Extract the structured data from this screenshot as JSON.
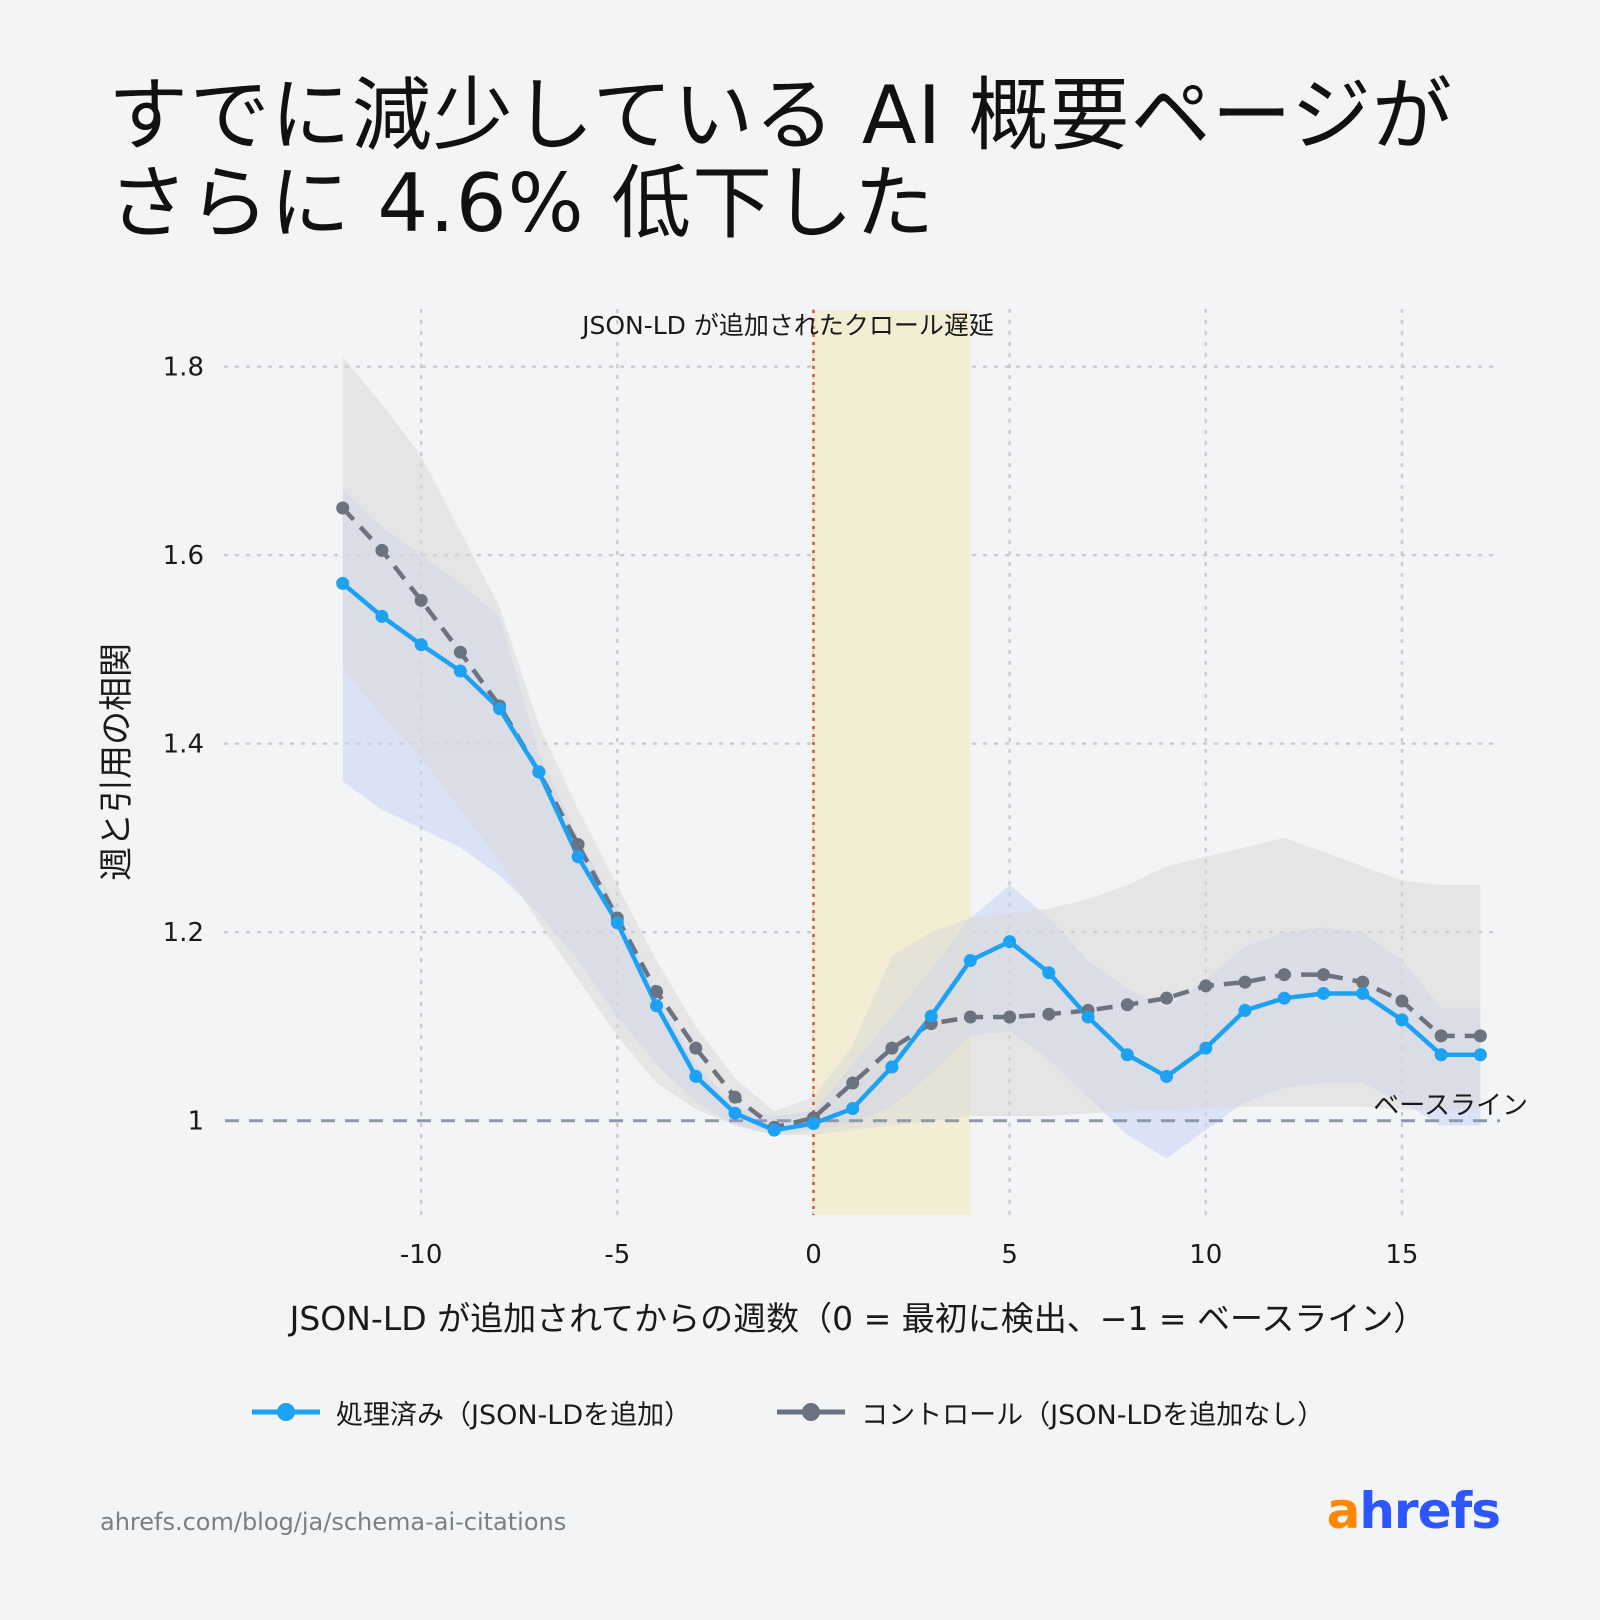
{
  "header": {
    "title_line1": "すでに減少している AI 概要ページが",
    "title_line2": "さらに 4.6% 低下した"
  },
  "chart_data": {
    "type": "line",
    "xlabel": "JSON-LD が追加されてからの週数（0 = 最初に検出、−1 = ベースライン）",
    "ylabel": "週と引用の相関",
    "xlim": [
      -15,
      17.5
    ],
    "ylim": [
      0.9,
      1.86
    ],
    "x_ticks": [
      -10,
      -5,
      0,
      5,
      10,
      15
    ],
    "x_tick_labels": [
      "-10",
      "-5",
      "0",
      "5",
      "10",
      "15"
    ],
    "y_ticks": [
      1.0,
      1.2,
      1.4,
      1.6,
      1.8
    ],
    "y_tick_labels": [
      "1",
      "1.2",
      "1.4",
      "1.6",
      "1.8"
    ],
    "grid": true,
    "legend_position": "bottom",
    "annotations": {
      "crawl_delay_label": "JSON-LD が追加されたクロール遅延",
      "crawl_delay_range": [
        0,
        4
      ],
      "event_line_x": 0,
      "baseline_label": "ベースライン",
      "baseline_y": 1.0
    },
    "series": [
      {
        "name": "処理済み（JSON-LDを追加）",
        "style": "solid",
        "color": "#1da1f2",
        "x": [
          -12,
          -11,
          -10,
          -9,
          -8,
          -7,
          -6,
          -5,
          -4,
          -3,
          -2,
          -1,
          0,
          1,
          2,
          3,
          4,
          5,
          6,
          7,
          8,
          9,
          10,
          11,
          12,
          13,
          14,
          15,
          16,
          17
        ],
        "values": [
          1.57,
          1.535,
          1.505,
          1.477,
          1.437,
          1.37,
          1.28,
          1.21,
          1.122,
          1.047,
          1.008,
          0.99,
          0.997,
          1.013,
          1.057,
          1.111,
          1.17,
          1.19,
          1.157,
          1.11,
          1.07,
          1.047,
          1.077,
          1.117,
          1.13,
          1.135,
          1.135,
          1.107,
          1.07,
          1.07
        ],
        "ci_upper": [
          1.67,
          1.63,
          1.6,
          1.57,
          1.535,
          1.39,
          1.3,
          1.225,
          1.135,
          1.06,
          1.015,
          1.005,
          1.01,
          1.06,
          1.11,
          1.16,
          1.215,
          1.25,
          1.215,
          1.17,
          1.14,
          1.12,
          1.15,
          1.185,
          1.2,
          1.205,
          1.2,
          1.17,
          1.12,
          1.12
        ],
        "ci_lower": [
          1.36,
          1.33,
          1.31,
          1.29,
          1.26,
          1.22,
          1.17,
          1.11,
          1.06,
          1.02,
          0.995,
          0.985,
          0.99,
          0.998,
          1.015,
          1.05,
          1.09,
          1.095,
          1.065,
          1.025,
          0.985,
          0.96,
          0.99,
          1.02,
          1.035,
          1.04,
          1.04,
          1.02,
          0.995,
          0.995
        ]
      },
      {
        "name": "コントロール（JSON-LDを追加なし）",
        "style": "dashed",
        "color": "#6b7280",
        "x": [
          -12,
          -11,
          -10,
          -9,
          -8,
          -7,
          -6,
          -5,
          -4,
          -3,
          -2,
          -1,
          0,
          1,
          2,
          3,
          4,
          5,
          6,
          7,
          8,
          9,
          10,
          11,
          12,
          13,
          14,
          15,
          16,
          17
        ],
        "values": [
          1.65,
          1.605,
          1.552,
          1.497,
          1.44,
          1.37,
          1.293,
          1.215,
          1.137,
          1.077,
          1.025,
          0.993,
          1.003,
          1.04,
          1.077,
          1.103,
          1.11,
          1.11,
          1.113,
          1.117,
          1.123,
          1.13,
          1.143,
          1.147,
          1.155,
          1.155,
          1.147,
          1.127,
          1.09,
          1.09
        ],
        "ci_upper": [
          1.81,
          1.76,
          1.705,
          1.625,
          1.545,
          1.42,
          1.33,
          1.25,
          1.17,
          1.1,
          1.045,
          1.01,
          1.025,
          1.08,
          1.175,
          1.2,
          1.215,
          1.22,
          1.225,
          1.235,
          1.25,
          1.27,
          1.28,
          1.29,
          1.3,
          1.285,
          1.27,
          1.255,
          1.25,
          1.25
        ],
        "ci_lower": [
          1.48,
          1.43,
          1.385,
          1.33,
          1.275,
          1.21,
          1.15,
          1.09,
          1.04,
          1.012,
          0.995,
          0.985,
          0.985,
          0.99,
          0.995,
          1.0,
          1.005,
          1.005,
          1.005,
          1.008,
          1.01,
          1.012,
          1.013,
          1.015,
          1.015,
          1.015,
          1.015,
          1.012,
          1.012,
          1.012
        ]
      }
    ]
  },
  "footer": {
    "source": "ahrefs.com/blog/ja/schema-ai-citations",
    "brand_a": "a",
    "brand_rest": "hrefs"
  }
}
